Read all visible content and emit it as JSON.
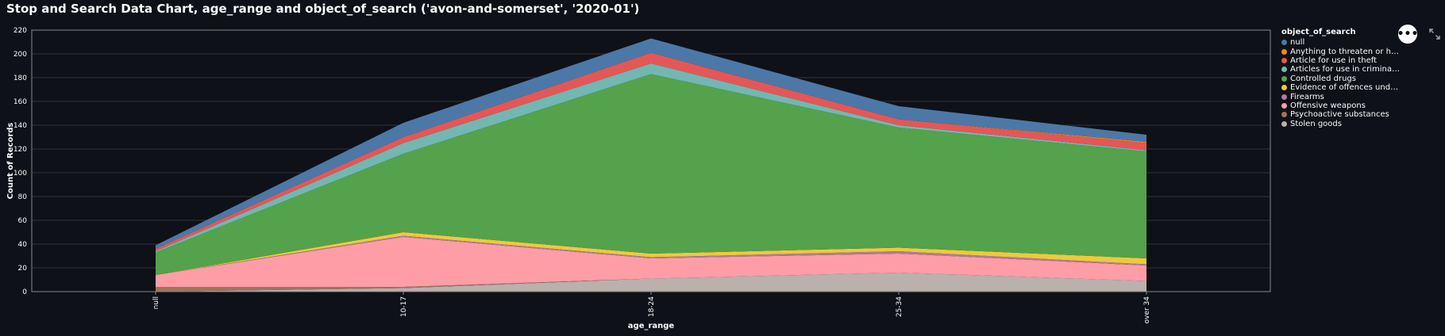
{
  "page": {
    "title": "Stop and Search Data Chart, age_range and object_of_search ('avon-and-somerset', '2020-01')"
  },
  "toolbar": {
    "more_icon": "more-horizontal-icon",
    "more_label": "•••",
    "expand_icon": "expand-icon"
  },
  "chart_data": {
    "type": "area",
    "stacked": true,
    "xlabel": "age_range",
    "ylabel": "Count of Records",
    "ylim": [
      0,
      220
    ],
    "yticks": [
      0,
      20,
      40,
      60,
      80,
      100,
      120,
      140,
      160,
      180,
      200,
      220
    ],
    "grid": true,
    "legend_position": "right",
    "legend_title": "object_of_search",
    "categories": [
      "null",
      "10-17",
      "18-24",
      "25-34",
      "over 34"
    ],
    "series": [
      {
        "name": "Stolen goods",
        "color": "#bab0ac",
        "values": [
          0,
          3,
          11,
          16,
          9
        ]
      },
      {
        "name": "Psychoactive substances",
        "color": "#9d755d",
        "values": [
          4,
          1,
          0,
          0,
          0
        ]
      },
      {
        "name": "Offensive weapons",
        "color": "#ff9da6",
        "values": [
          10,
          42,
          17,
          16,
          13
        ]
      },
      {
        "name": "Firearms",
        "color": "#b279a2",
        "values": [
          0,
          1,
          1,
          2,
          1
        ]
      },
      {
        "name": "Evidence of offences under the Act",
        "color": "#eeca3b",
        "values": [
          0,
          3,
          3,
          3,
          5
        ]
      },
      {
        "name": "Controlled drugs",
        "color": "#54a24b",
        "values": [
          19,
          66,
          151,
          101,
          90
        ]
      },
      {
        "name": "Articles for use in criminal damage",
        "color": "#72b7b2",
        "values": [
          1,
          9,
          9,
          2,
          1
        ]
      },
      {
        "name": "Article for use in theft",
        "color": "#e45756",
        "values": [
          2,
          5,
          9,
          5,
          6
        ]
      },
      {
        "name": "Anything to threaten or harm anyone",
        "color": "#f58518",
        "values": [
          0,
          0,
          0,
          0,
          1
        ]
      },
      {
        "name": "null",
        "color": "#4c78a8",
        "values": [
          3,
          12,
          12,
          11,
          6
        ]
      }
    ]
  },
  "legend": {
    "title": "object_of_search",
    "items": [
      {
        "label": "null",
        "color": "#4c78a8"
      },
      {
        "label": "Anything to threaten or harm ...",
        "color": "#f58518"
      },
      {
        "label": "Article for use in theft",
        "color": "#e45756"
      },
      {
        "label": "Articles for use in criminal da...",
        "color": "#72b7b2"
      },
      {
        "label": "Controlled drugs",
        "color": "#54a24b"
      },
      {
        "label": "Evidence of offences under th...",
        "color": "#eeca3b"
      },
      {
        "label": "Firearms",
        "color": "#b279a2"
      },
      {
        "label": "Offensive weapons",
        "color": "#ff9da6"
      },
      {
        "label": "Psychoactive substances",
        "color": "#9d755d"
      },
      {
        "label": "Stolen goods",
        "color": "#bab0ac"
      }
    ]
  }
}
